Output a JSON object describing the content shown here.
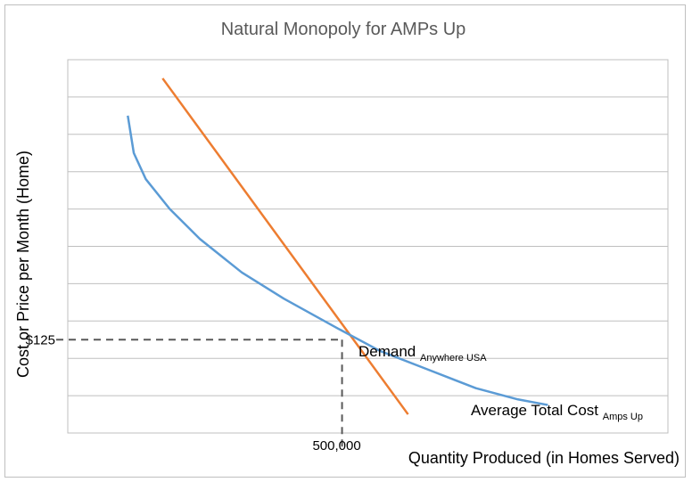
{
  "chart_data": {
    "type": "line",
    "title": "Natural Monopoly for AMPs Up",
    "xlabel": "Quantity Produced (in Homes Served)",
    "ylabel": "Cost or Price per Month (Home)",
    "grid": true,
    "legend": "none",
    "marked_point": {
      "x_label": "500,000",
      "y_label": "$125"
    },
    "series": [
      {
        "name": "Demand",
        "label_main": "Demand",
        "label_sub": "Anywhere USA",
        "color": "#ED7D31",
        "points": [
          [
            0.158,
            0.95
          ],
          [
            0.567,
            0.05
          ]
        ]
      },
      {
        "name": "Average Total Cost",
        "label_main": "Average Total Cost",
        "label_sub": "Amps Up",
        "color": "#5B9BD5",
        "points": [
          [
            0.1,
            0.85
          ],
          [
            0.11,
            0.75
          ],
          [
            0.13,
            0.68
          ],
          [
            0.17,
            0.6
          ],
          [
            0.22,
            0.52
          ],
          [
            0.29,
            0.43
          ],
          [
            0.36,
            0.36
          ],
          [
            0.45,
            0.28
          ],
          [
            0.52,
            0.22
          ],
          [
            0.6,
            0.17
          ],
          [
            0.68,
            0.12
          ],
          [
            0.75,
            0.09
          ],
          [
            0.8,
            0.075
          ]
        ]
      }
    ]
  }
}
